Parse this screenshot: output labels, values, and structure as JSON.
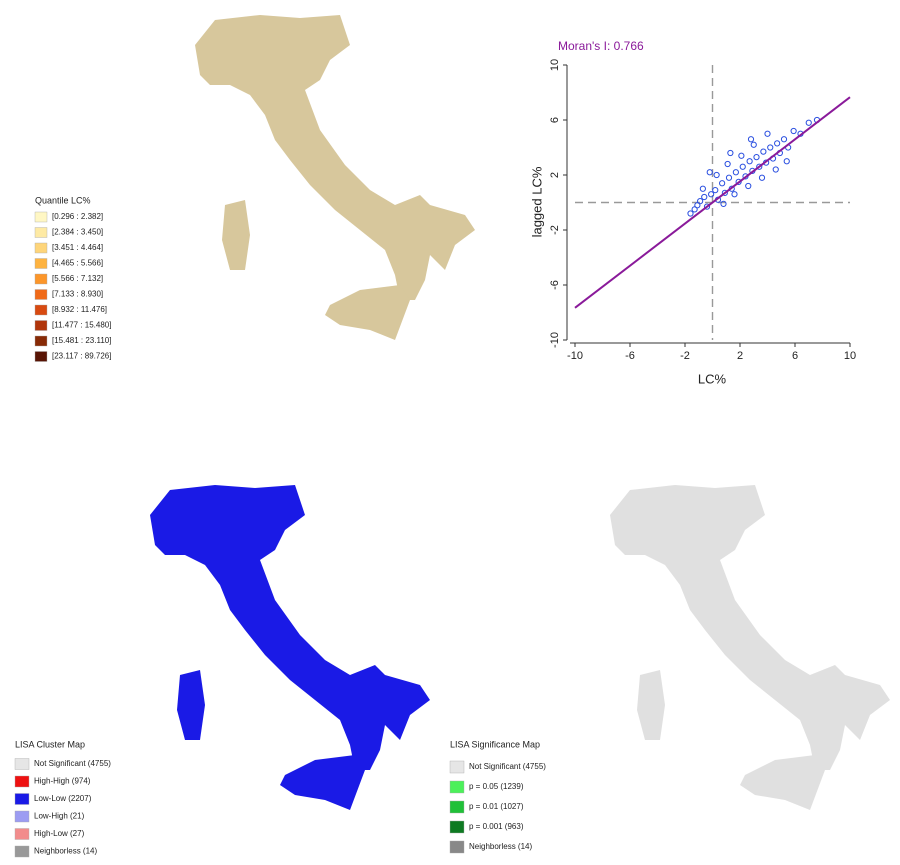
{
  "quantile_legend": {
    "title": "Quantile LC%",
    "items": [
      {
        "label": "[0.296 : 2.382]",
        "color": "#fff7c4"
      },
      {
        "label": "[2.384 : 3.450]",
        "color": "#feeaa4"
      },
      {
        "label": "[3.451 : 4.464]",
        "color": "#fed57a"
      },
      {
        "label": "[4.465 : 5.566]",
        "color": "#feb340"
      },
      {
        "label": "[5.566 : 7.132]",
        "color": "#fc962a"
      },
      {
        "label": "[7.133 : 8.930]",
        "color": "#f06a18"
      },
      {
        "label": "[8.932 : 11.476]",
        "color": "#d84a10"
      },
      {
        "label": "[11.477 : 15.480]",
        "color": "#b0350a"
      },
      {
        "label": "[15.481 : 23.110]",
        "color": "#872a06"
      },
      {
        "label": "[23.117 : 89.726]",
        "color": "#581404"
      }
    ]
  },
  "cluster_legend": {
    "title": "LISA Cluster Map",
    "items": [
      {
        "label": "Not Significant (4755)",
        "color": "#e6e6e6"
      },
      {
        "label": "High-High (974)",
        "color": "#ee1111"
      },
      {
        "label": "Low-Low (2207)",
        "color": "#1a1ae6"
      },
      {
        "label": "Low-High (21)",
        "color": "#9c9cf2"
      },
      {
        "label": "High-Low (27)",
        "color": "#f28c8c"
      },
      {
        "label": "Neighborless (14)",
        "color": "#999999"
      }
    ]
  },
  "significance_legend": {
    "title": "LISA Significance Map",
    "items": [
      {
        "label": "Not Significant (4755)",
        "color": "#e6e6e6"
      },
      {
        "label": "p = 0.05 (1239)",
        "color": "#4cf05a"
      },
      {
        "label": "p = 0.01 (1027)",
        "color": "#20c038"
      },
      {
        "label": "p = 0.001 (963)",
        "color": "#0e7a22"
      },
      {
        "label": "Neighborless (14)",
        "color": "#888888"
      }
    ]
  },
  "chart_data": {
    "type": "scatter",
    "title": "Moran's I: 0.766",
    "x_label": "LC%",
    "y_label": "lagged LC%",
    "color": "#2a4fe0",
    "fit_color": "#8a1a9a",
    "reference_color": "#999999",
    "x": [
      -1.6,
      -1.3,
      -1.1,
      -0.9,
      -0.6,
      -0.4,
      -0.1,
      0.2,
      0.4,
      0.7,
      0.9,
      1.2,
      1.4,
      1.7,
      1.9,
      2.2,
      2.4,
      2.7,
      2.9,
      3.2,
      3.4,
      3.7,
      3.9,
      4.2,
      4.4,
      4.7,
      4.9,
      5.2,
      5.5,
      5.9,
      6.4,
      7.0,
      7.6,
      -0.7,
      0.3,
      1.1,
      2.1,
      3.0,
      4.0,
      0.8,
      1.6,
      2.6,
      3.6,
      4.6,
      5.4,
      1.3,
      2.8,
      -0.2
    ],
    "y": [
      -0.8,
      -0.5,
      -0.2,
      0.1,
      0.4,
      -0.3,
      0.6,
      0.9,
      0.2,
      1.4,
      0.7,
      1.8,
      1.0,
      2.2,
      1.5,
      2.6,
      1.9,
      3.0,
      2.3,
      3.3,
      2.6,
      3.7,
      2.9,
      4.0,
      3.2,
      4.3,
      3.6,
      4.6,
      4.0,
      5.2,
      5.0,
      5.8,
      6.0,
      1.0,
      2.0,
      2.8,
      3.4,
      4.2,
      5.0,
      -0.1,
      0.6,
      1.2,
      1.8,
      2.4,
      3.0,
      3.6,
      4.6,
      2.2
    ],
    "fit": {
      "x": [
        -10,
        10
      ],
      "y": [
        -7.66,
        7.66
      ]
    },
    "reference_x": 0,
    "reference_y": 0,
    "xlim": [
      -10,
      10
    ],
    "ylim": [
      -10,
      10
    ],
    "xticks": [
      -10,
      -6,
      -2,
      2,
      6,
      10
    ],
    "yticks": [
      -10,
      -6,
      -2,
      2,
      6,
      10
    ]
  }
}
